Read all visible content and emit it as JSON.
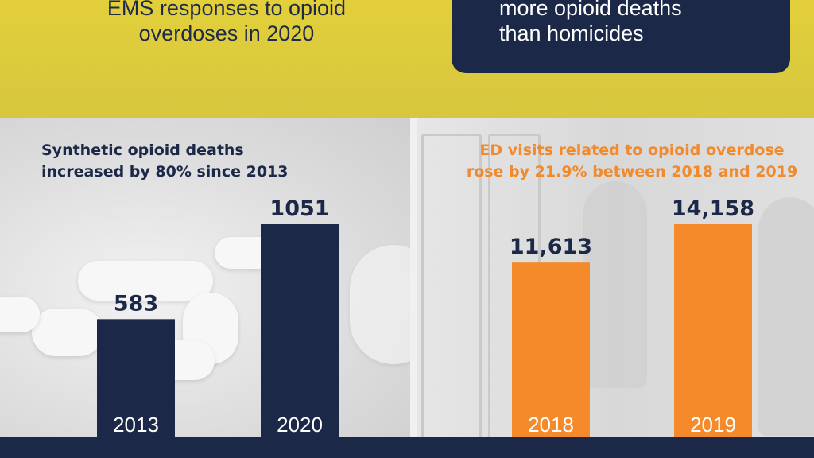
{
  "header": {
    "ems_lines": [
      "EMS responses to opioid",
      "overdoses in 2020"
    ],
    "callout_lines": [
      "more opioid deaths",
      "than homicides"
    ]
  },
  "chart_data": [
    {
      "type": "bar",
      "title_lines": [
        "Synthetic opioid deaths",
        "increased by 80% since 2013"
      ],
      "categories": [
        "2013",
        "2020"
      ],
      "values": [
        583,
        1051
      ],
      "value_labels": [
        "583",
        "1051"
      ],
      "ylim": [
        0,
        1051
      ],
      "bar_color": "#1b2848",
      "label_color": "#1b2848"
    },
    {
      "type": "bar",
      "title_lines": [
        "ED visits related to opioid overdose",
        "rose by 21.9% between 2018 and 2019"
      ],
      "categories": [
        "2018",
        "2019"
      ],
      "values": [
        11613,
        14158
      ],
      "value_labels": [
        "11,613",
        "14,158"
      ],
      "ylim": [
        0,
        14158
      ],
      "bar_color": "#f48a2a",
      "label_color": "#1b2848"
    }
  ],
  "colors": {
    "yellow_band": "#dccb3c",
    "navy": "#1b2848",
    "orange": "#f48a2a"
  }
}
